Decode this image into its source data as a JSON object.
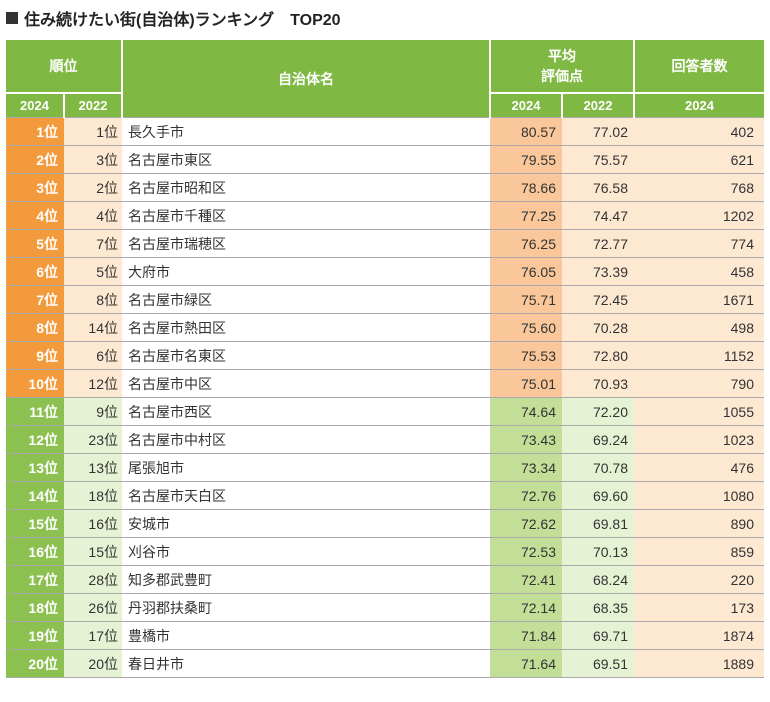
{
  "title": "住み続けたい街(自治体)ランキング　TOP20",
  "colors": {
    "header_bg": "#7fb842",
    "rank_top": "#f39a3c",
    "rank_bot": "#8cc152",
    "rank22_top": "#fde8d2",
    "rank22_bot": "#e6f2d4",
    "score24_top": "#f9c799",
    "score24_bot": "#c3de97",
    "score22_top": "#fde8d2",
    "score22_bot": "#e6f2d4",
    "resp_bg": "#fde8d2"
  },
  "cols": {
    "rank24": 58,
    "rank22": 58,
    "name": 368,
    "score24": 72,
    "score22": 72,
    "resp": 130
  },
  "headers": {
    "rank": "順位",
    "name": "自治体名",
    "score": "平均\n評価点",
    "resp": "回答者数",
    "y2024": "2024",
    "y2022": "2022"
  },
  "rows": [
    {
      "r24": "1位",
      "r22": "1位",
      "name": "長久手市",
      "s24": "80.57",
      "s22": "77.02",
      "resp": "402",
      "tier": "top"
    },
    {
      "r24": "2位",
      "r22": "3位",
      "name": "名古屋市東区",
      "s24": "79.55",
      "s22": "75.57",
      "resp": "621",
      "tier": "top"
    },
    {
      "r24": "3位",
      "r22": "2位",
      "name": "名古屋市昭和区",
      "s24": "78.66",
      "s22": "76.58",
      "resp": "768",
      "tier": "top"
    },
    {
      "r24": "4位",
      "r22": "4位",
      "name": "名古屋市千種区",
      "s24": "77.25",
      "s22": "74.47",
      "resp": "1202",
      "tier": "top"
    },
    {
      "r24": "5位",
      "r22": "7位",
      "name": "名古屋市瑞穂区",
      "s24": "76.25",
      "s22": "72.77",
      "resp": "774",
      "tier": "top"
    },
    {
      "r24": "6位",
      "r22": "5位",
      "name": "大府市",
      "s24": "76.05",
      "s22": "73.39",
      "resp": "458",
      "tier": "top"
    },
    {
      "r24": "7位",
      "r22": "8位",
      "name": "名古屋市緑区",
      "s24": "75.71",
      "s22": "72.45",
      "resp": "1671",
      "tier": "top"
    },
    {
      "r24": "8位",
      "r22": "14位",
      "name": "名古屋市熱田区",
      "s24": "75.60",
      "s22": "70.28",
      "resp": "498",
      "tier": "top"
    },
    {
      "r24": "9位",
      "r22": "6位",
      "name": "名古屋市名東区",
      "s24": "75.53",
      "s22": "72.80",
      "resp": "1152",
      "tier": "top"
    },
    {
      "r24": "10位",
      "r22": "12位",
      "name": "名古屋市中区",
      "s24": "75.01",
      "s22": "70.93",
      "resp": "790",
      "tier": "top"
    },
    {
      "r24": "11位",
      "r22": "9位",
      "name": "名古屋市西区",
      "s24": "74.64",
      "s22": "72.20",
      "resp": "1055",
      "tier": "bot"
    },
    {
      "r24": "12位",
      "r22": "23位",
      "name": "名古屋市中村区",
      "s24": "73.43",
      "s22": "69.24",
      "resp": "1023",
      "tier": "bot"
    },
    {
      "r24": "13位",
      "r22": "13位",
      "name": "尾張旭市",
      "s24": "73.34",
      "s22": "70.78",
      "resp": "476",
      "tier": "bot"
    },
    {
      "r24": "14位",
      "r22": "18位",
      "name": "名古屋市天白区",
      "s24": "72.76",
      "s22": "69.60",
      "resp": "1080",
      "tier": "bot"
    },
    {
      "r24": "15位",
      "r22": "16位",
      "name": "安城市",
      "s24": "72.62",
      "s22": "69.81",
      "resp": "890",
      "tier": "bot"
    },
    {
      "r24": "16位",
      "r22": "15位",
      "name": "刈谷市",
      "s24": "72.53",
      "s22": "70.13",
      "resp": "859",
      "tier": "bot"
    },
    {
      "r24": "17位",
      "r22": "28位",
      "name": "知多郡武豊町",
      "s24": "72.41",
      "s22": "68.24",
      "resp": "220",
      "tier": "bot"
    },
    {
      "r24": "18位",
      "r22": "26位",
      "name": "丹羽郡扶桑町",
      "s24": "72.14",
      "s22": "68.35",
      "resp": "173",
      "tier": "bot"
    },
    {
      "r24": "19位",
      "r22": "17位",
      "name": "豊橋市",
      "s24": "71.84",
      "s22": "69.71",
      "resp": "1874",
      "tier": "bot"
    },
    {
      "r24": "20位",
      "r22": "20位",
      "name": "春日井市",
      "s24": "71.64",
      "s22": "69.51",
      "resp": "1889",
      "tier": "bot"
    }
  ]
}
